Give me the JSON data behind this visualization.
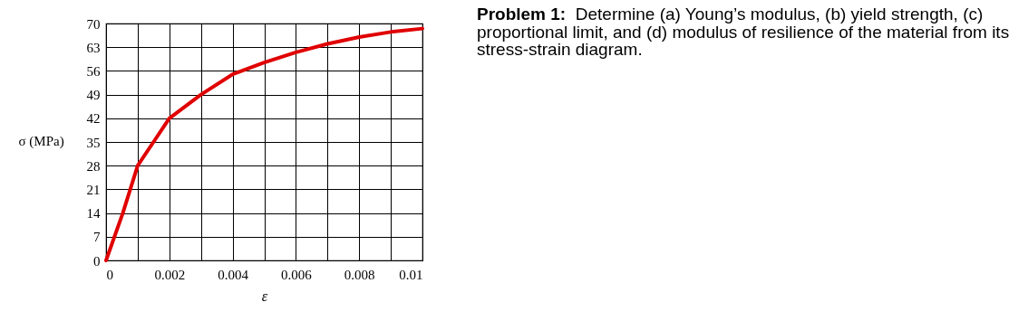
{
  "chart_data": {
    "type": "line",
    "xlabel": "ε",
    "ylabel": "σ (MPa)",
    "x": [
      0,
      0.00053,
      0.001,
      0.0015,
      0.002,
      0.003,
      0.004,
      0.005,
      0.006,
      0.007,
      0.008,
      0.009,
      0.01
    ],
    "series": [
      {
        "color": "#e00000",
        "values": [
          0,
          14,
          28,
          35,
          42,
          49,
          55,
          58.5,
          61.5,
          64,
          66,
          67.5,
          68.5
        ]
      }
    ],
    "xlim": [
      0,
      0.01
    ],
    "ylim": [
      0,
      70
    ],
    "xticks": [
      0,
      {
        "value": 0.001,
        "label": null
      },
      0.002,
      {
        "value": 0.003,
        "label": null
      },
      0.004,
      {
        "value": 0.005,
        "label": null
      },
      0.006,
      {
        "value": 0.007,
        "label": null
      },
      0.008,
      {
        "value": 0.009,
        "label": null
      },
      0.01
    ],
    "yticks": [
      0,
      7,
      14,
      21,
      28,
      35,
      42,
      49,
      56,
      63,
      70
    ],
    "grid": true,
    "line_style": "solid",
    "annotations": [
      "Problem 1:",
      "Determine (a) Young’s modulus, (b) yield strength, (c) proportional limit, and (d) modulus of resilience of the material from its stress-strain diagram."
    ]
  }
}
